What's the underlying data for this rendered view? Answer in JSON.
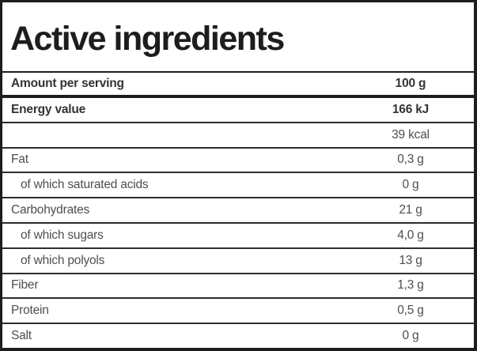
{
  "title": "Active ingredients",
  "header_row": {
    "label": "Amount per serving",
    "value": "100 g"
  },
  "rows": [
    {
      "label": "Energy value",
      "value": "166 kJ",
      "bold": true,
      "indent": false
    },
    {
      "label": "",
      "value": "39 kcal",
      "bold": false,
      "indent": false
    },
    {
      "label": "Fat",
      "value": "0,3 g",
      "bold": false,
      "indent": false
    },
    {
      "label": "of which saturated acids",
      "value": "0 g",
      "bold": false,
      "indent": true
    },
    {
      "label": "Carbohydrates",
      "value": "21 g",
      "bold": false,
      "indent": false
    },
    {
      "label": "of which sugars",
      "value": "4,0 g",
      "bold": false,
      "indent": true
    },
    {
      "label": "of which polyols",
      "value": "13 g",
      "bold": false,
      "indent": true
    },
    {
      "label": "Fiber",
      "value": "1,3 g",
      "bold": false,
      "indent": false
    },
    {
      "label": "Protein",
      "value": "0,5 g",
      "bold": false,
      "indent": false
    },
    {
      "label": "Salt",
      "value": "0 g",
      "bold": false,
      "indent": false
    }
  ],
  "colors": {
    "border": "#1d1d1b",
    "separator": "#2d2c2a",
    "text": "#514e4b",
    "bold_text": "#343331",
    "background": "#ffffff"
  }
}
